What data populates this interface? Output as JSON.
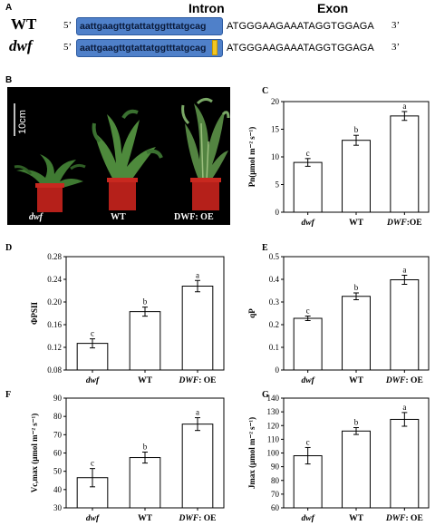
{
  "panel_a": {
    "label": "A",
    "intron_header": "Intron",
    "exon_header": "Exon",
    "rows": [
      {
        "name": "WT",
        "five_prime": "5’",
        "intron": "aattgaagttgtattatggtttatgcag",
        "exon": "ATGGGAAGAAATAGGTGGAGA",
        "three_prime": "3’"
      },
      {
        "name": "dwf",
        "five_prime": "5’",
        "intron": "aattgaagttgtattatggtttatgcag",
        "exon": "ATGGGAAGAAATAGGTGGAGA",
        "three_prime": "3’"
      }
    ],
    "mutation_color": "#f2c624"
  },
  "panel_b": {
    "label": "B",
    "scale_bar": "10cm",
    "captions": [
      "dwf",
      "WT",
      "DWF: OE"
    ]
  },
  "chart_data": [
    {
      "panel": "C",
      "type": "bar",
      "categories": [
        "dwf",
        "WT",
        "DWF:OE"
      ],
      "values": [
        9.0,
        13.0,
        17.4
      ],
      "errors": [
        0.7,
        0.9,
        0.8
      ],
      "letters": [
        "c",
        "b",
        "a"
      ],
      "ylabel": "Pn(μmol m⁻² s⁻¹)",
      "ylim": [
        0,
        20
      ],
      "yticks": [
        "0",
        "5",
        "10",
        "15",
        "20"
      ]
    },
    {
      "panel": "D",
      "type": "bar",
      "categories": [
        "dwf",
        "WT",
        "DWF: OE"
      ],
      "values": [
        0.127,
        0.183,
        0.228
      ],
      "errors": [
        0.008,
        0.008,
        0.01
      ],
      "letters": [
        "c",
        "b",
        "a"
      ],
      "ylabel": "ΦPSII",
      "ylim": [
        0.08,
        0.28
      ],
      "yticks": [
        "0.08",
        "0.12",
        "0.16",
        "0.20",
        "0.24",
        "0.28"
      ]
    },
    {
      "panel": "E",
      "type": "bar",
      "categories": [
        "dwf",
        "WT",
        "DWF: OE"
      ],
      "values": [
        0.228,
        0.325,
        0.398
      ],
      "errors": [
        0.01,
        0.015,
        0.02
      ],
      "letters": [
        "c",
        "b",
        "a"
      ],
      "ylabel": "qP",
      "ylim": [
        0,
        0.5
      ],
      "yticks": [
        "0",
        "0.1",
        "0.2",
        "0.3",
        "0.4",
        "0.5"
      ]
    },
    {
      "panel": "F",
      "type": "bar",
      "categories": [
        "dwf",
        "WT",
        "DWF: OE"
      ],
      "values": [
        46.5,
        57.5,
        75.8
      ],
      "errors": [
        5.0,
        3.0,
        3.5
      ],
      "letters": [
        "c",
        "b",
        "a"
      ],
      "ylabel": "Vc,max (μmol m⁻² s⁻¹)",
      "ylim": [
        30,
        90
      ],
      "yticks": [
        "30",
        "40",
        "50",
        "60",
        "70",
        "80",
        "90"
      ]
    },
    {
      "panel": "G",
      "type": "bar",
      "categories": [
        "dwf",
        "WT",
        "DWF: OE"
      ],
      "values": [
        98,
        116,
        124.5
      ],
      "errors": [
        6.0,
        2.5,
        5.0
      ],
      "letters": [
        "c",
        "b",
        "a"
      ],
      "ylabel": "Jmax (μmol m⁻² s⁻¹)",
      "ylim": [
        60,
        140
      ],
      "yticks": [
        "60",
        "70",
        "80",
        "90",
        "100",
        "110",
        "120",
        "130",
        "140"
      ]
    }
  ]
}
